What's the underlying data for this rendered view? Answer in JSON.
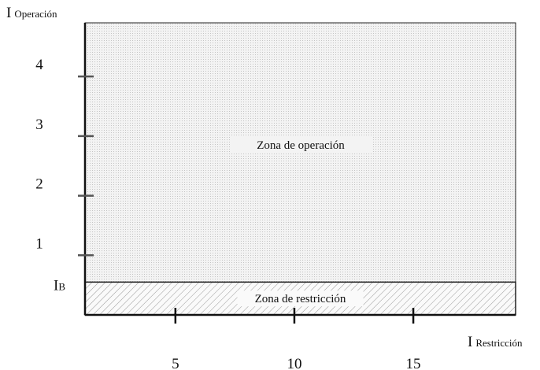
{
  "chart_data": {
    "type": "relay-characteristic",
    "y_label": {
      "main": "I",
      "sub": "Operación"
    },
    "x_label": {
      "main": "I",
      "sub": "Restricción"
    },
    "threshold": {
      "main": "I",
      "sub": "B",
      "value": 0.55
    },
    "operation_zone": "Zona de operación",
    "restriction_zone": "Zona de restricción",
    "xlim": [
      1.2,
      19.3
    ],
    "ylim": [
      0,
      4.9
    ],
    "xticks": [
      5,
      10,
      15
    ],
    "yticks": [
      1,
      2,
      3,
      4
    ]
  }
}
